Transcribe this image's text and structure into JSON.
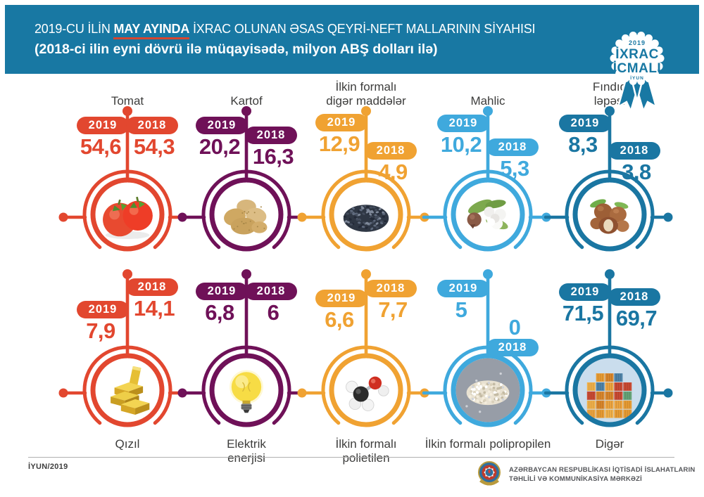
{
  "header": {
    "title_prefix": "2019-CU İLİN ",
    "title_highlight": "MAY AYINDA",
    "title_suffix": " İXRAC OLUNAN ƏSAS QEYRİ-NEFT MALLARININ SİYAHISI",
    "subtitle": "(2018-ci ilin eyni dövrü ilə müqayisədə, milyon ABŞ dolları ilə)",
    "bg_color": "#1878A3",
    "underline_color": "#D6452F",
    "text_color": "#FFFFFF"
  },
  "badge": {
    "year": "2019",
    "line1": "İXRAC",
    "line2": "İCMALI",
    "month": "İYUN",
    "color": "#1878A3"
  },
  "years": {
    "current": "2019",
    "previous": "2018"
  },
  "items": [
    {
      "row": 1,
      "label_lines": [
        "Tomat"
      ],
      "color": "#E2472F",
      "value_2019": "54,6",
      "value_2018": "54,3",
      "image": "tomatoes-photo",
      "layout": {
        "y2019": 166,
        "y2018": 166,
        "flip_2018": false,
        "left_dot": true,
        "right_dot": false
      }
    },
    {
      "row": 1,
      "label_lines": [
        "Kartof"
      ],
      "color": "#6F1158",
      "value_2019": "20,2",
      "value_2018": "16,3",
      "image": "potatoes-photo",
      "layout": {
        "y2019": 166,
        "y2018": 180,
        "flip_2018": false,
        "left_dot": true,
        "right_dot": false
      }
    },
    {
      "row": 1,
      "label_lines": [
        "İlkin formalı",
        "digər maddələr"
      ],
      "color": "#F0A232",
      "value_2019": "12,9",
      "value_2018": "4,9",
      "image": "seeds-photo",
      "layout": {
        "y2019": 162,
        "y2018": 202,
        "flip_2018": false,
        "left_dot": true,
        "right_dot": true
      }
    },
    {
      "row": 1,
      "label_lines": [
        "Mahlic"
      ],
      "color": "#3FA9DD",
      "value_2019": "10,2",
      "value_2018": "5,3",
      "image": "cotton-photo",
      "layout": {
        "y2019": 163,
        "y2018": 197,
        "flip_2018": false,
        "left_dot": false,
        "right_dot": true
      }
    },
    {
      "row": 1,
      "label_lines": [
        "Fındıq",
        "ləpəsi"
      ],
      "color": "#1A76A2",
      "value_2019": "8,3",
      "value_2018": "3,8",
      "image": "hazelnuts-photo",
      "layout": {
        "y2019": 163,
        "y2018": 202,
        "flip_2018": false,
        "left_dot": false,
        "right_dot": true
      }
    },
    {
      "row": 2,
      "label_lines": [
        "Qızıl"
      ],
      "color": "#E2472F",
      "value_2019": "7,9",
      "value_2018": "14,1",
      "image": "gold-bars-photo",
      "layout": {
        "y2019": 428,
        "y2018": 396,
        "flip_2018": false,
        "left_dot": true,
        "right_dot": false
      }
    },
    {
      "row": 2,
      "label_lines": [
        "Elektrik",
        "enerjisi"
      ],
      "color": "#6F1158",
      "value_2019": "6,8",
      "value_2018": "6",
      "image": "light-bulb-photo",
      "layout": {
        "y2019": 402,
        "y2018": 402,
        "flip_2018": false,
        "left_dot": true,
        "right_dot": false
      }
    },
    {
      "row": 2,
      "label_lines": [
        "İlkin formalı",
        "polietilen"
      ],
      "color": "#F0A232",
      "value_2019": "6,6",
      "value_2018": "7,7",
      "image": "molecule-photo",
      "layout": {
        "y2019": 412,
        "y2018": 398,
        "flip_2018": false,
        "left_dot": true,
        "right_dot": true
      }
    },
    {
      "row": 2,
      "label_lines": [
        "İlkin formalı polipropilen"
      ],
      "color": "#3FA9DD",
      "value_2019": "5",
      "value_2018": "0",
      "image": "granules-photo",
      "layout": {
        "y2019": 398,
        "y2018": 448,
        "flip_2018": true,
        "left_dot": false,
        "right_dot": true
      }
    },
    {
      "row": 2,
      "label_lines": [
        "Digər"
      ],
      "color": "#1A76A2",
      "value_2019": "71,5",
      "value_2018": "69,7",
      "image": "containers-photo",
      "layout": {
        "y2019": 403,
        "y2018": 410,
        "flip_2018": false,
        "left_dot": false,
        "right_dot": true
      }
    }
  ],
  "footer": {
    "date": "İYUN/2019",
    "org_line1": "AZƏRBAYCAN RESPUBLİKASI İQTİSADİ İSLAHATLARIN",
    "org_line2": "TƏHLİLİ VƏ KOMMUNİKASİYA MƏRKƏZİ",
    "emblem": "azerbaijan-state-emblem"
  },
  "chart_data": {
    "type": "table",
    "title": "2019-cu ilin may ayında ixrac olunan əsas qeyri-neft mallarının siyahısı",
    "subtitle": "2018-ci ilin eyni dövrü ilə müqayisədə",
    "unit": "milyon ABŞ dolları",
    "categories": [
      "Tomat",
      "Kartof",
      "İlkin formalı digər maddələr",
      "Mahlic",
      "Fındıq ləpəsi",
      "Qızıl",
      "Elektrik enerjisi",
      "İlkin formalı polietilen",
      "İlkin formalı polipropilen",
      "Digər"
    ],
    "series": [
      {
        "name": "2019",
        "values": [
          54.6,
          20.2,
          12.9,
          10.2,
          8.3,
          7.9,
          6.8,
          6.6,
          5,
          71.5
        ]
      },
      {
        "name": "2018",
        "values": [
          54.3,
          16.3,
          4.9,
          5.3,
          3.8,
          14.1,
          6,
          7.7,
          0,
          69.7
        ]
      }
    ],
    "legend_position": "per-item pills",
    "grid": false
  }
}
